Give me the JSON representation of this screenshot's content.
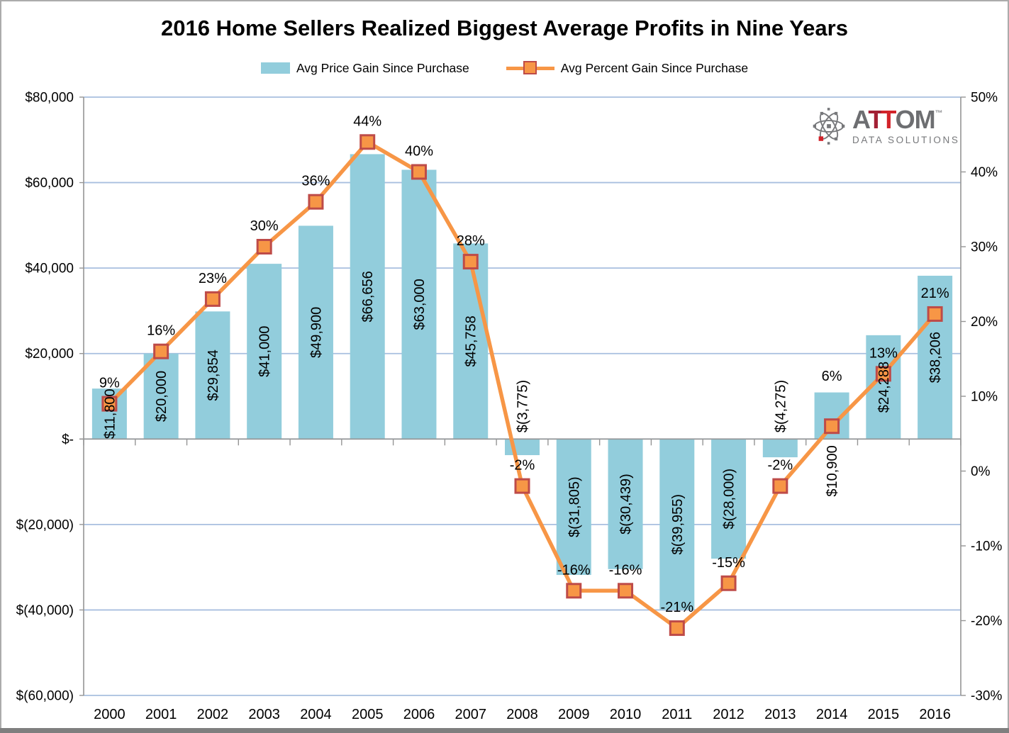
{
  "title": "2016 Home Sellers Realized Biggest Average Profits in Nine Years",
  "legend": {
    "bar_label": "Avg Price Gain Since Purchase",
    "line_label": "Avg Percent Gain Since Purchase"
  },
  "logo": {
    "part_a": "A",
    "part_t1": "T",
    "part_t2": "T",
    "part_om": "OM",
    "tm": "™",
    "tagline": "DATA SOLUTIONS"
  },
  "chart_data": {
    "type": "combo",
    "title": "2016 Home Sellers Realized Biggest Average Profits in Nine Years",
    "legend_position": "top",
    "grid": true,
    "categories": [
      "2000",
      "2001",
      "2002",
      "2003",
      "2004",
      "2005",
      "2006",
      "2007",
      "2008",
      "2009",
      "2010",
      "2011",
      "2012",
      "2013",
      "2014",
      "2015",
      "2016"
    ],
    "series": [
      {
        "name": "Avg Price Gain Since Purchase",
        "chart_type": "bar",
        "axis": "left",
        "color": "#92CDDC",
        "values": [
          11800,
          20000,
          29854,
          41000,
          49900,
          66656,
          63000,
          45758,
          -3775,
          -31805,
          -30439,
          -39955,
          -28000,
          -4275,
          10900,
          24288,
          38206
        ],
        "labels": [
          "$11,800",
          "$20,000",
          "$29,854",
          "$41,000",
          "$49,900",
          "$66,656",
          "$63,000",
          "$45,758",
          "$(3,775)",
          "$(31,805)",
          "$(30,439)",
          "$(39,955)",
          "$(28,000)",
          "$(4,275)",
          "$10,900",
          "$24,288",
          "$38,206"
        ],
        "label_placement": [
          "center",
          "center",
          "center",
          "center",
          "center",
          "center",
          "center",
          "center",
          "above-base",
          "center",
          "center",
          "center",
          "center",
          "above-base",
          "below-base",
          "center",
          "center"
        ]
      },
      {
        "name": "Avg Percent Gain Since Purchase",
        "chart_type": "line",
        "axis": "right",
        "color": "#F79646",
        "marker_border": "#BE4B48",
        "values": [
          9,
          16,
          23,
          30,
          36,
          44,
          40,
          28,
          -2,
          -16,
          -16,
          -21,
          -15,
          -2,
          6,
          13,
          21
        ],
        "labels": [
          "9%",
          "16%",
          "23%",
          "30%",
          "36%",
          "44%",
          "40%",
          "28%",
          "-2%",
          "-16%",
          "-16%",
          "-21%",
          "-15%",
          "-2%",
          "6%",
          "13%",
          "21%"
        ],
        "label_extra_dy": [
          0,
          0,
          0,
          0,
          0,
          0,
          0,
          0,
          0,
          0,
          0,
          0,
          0,
          0,
          -41,
          0,
          0
        ]
      }
    ],
    "left_axis": {
      "min": -60000,
      "max": 80000,
      "step": 20000,
      "tick_labels": [
        "$80,000",
        "$60,000",
        "$40,000",
        "$20,000",
        "$-",
        "$(20,000)",
        "$(40,000)",
        "$(60,000)"
      ]
    },
    "right_axis": {
      "min": -30,
      "max": 50,
      "step": 10,
      "tick_labels": [
        "50%",
        "40%",
        "30%",
        "20%",
        "10%",
        "0%",
        "-10%",
        "-20%",
        "-30%"
      ]
    },
    "colors": {
      "gridline": "#A8BFDF",
      "axis": "#959595",
      "bar": "#92CDDC",
      "line": "#F79646",
      "marker_border": "#BE4B48",
      "text": "#000000"
    }
  }
}
